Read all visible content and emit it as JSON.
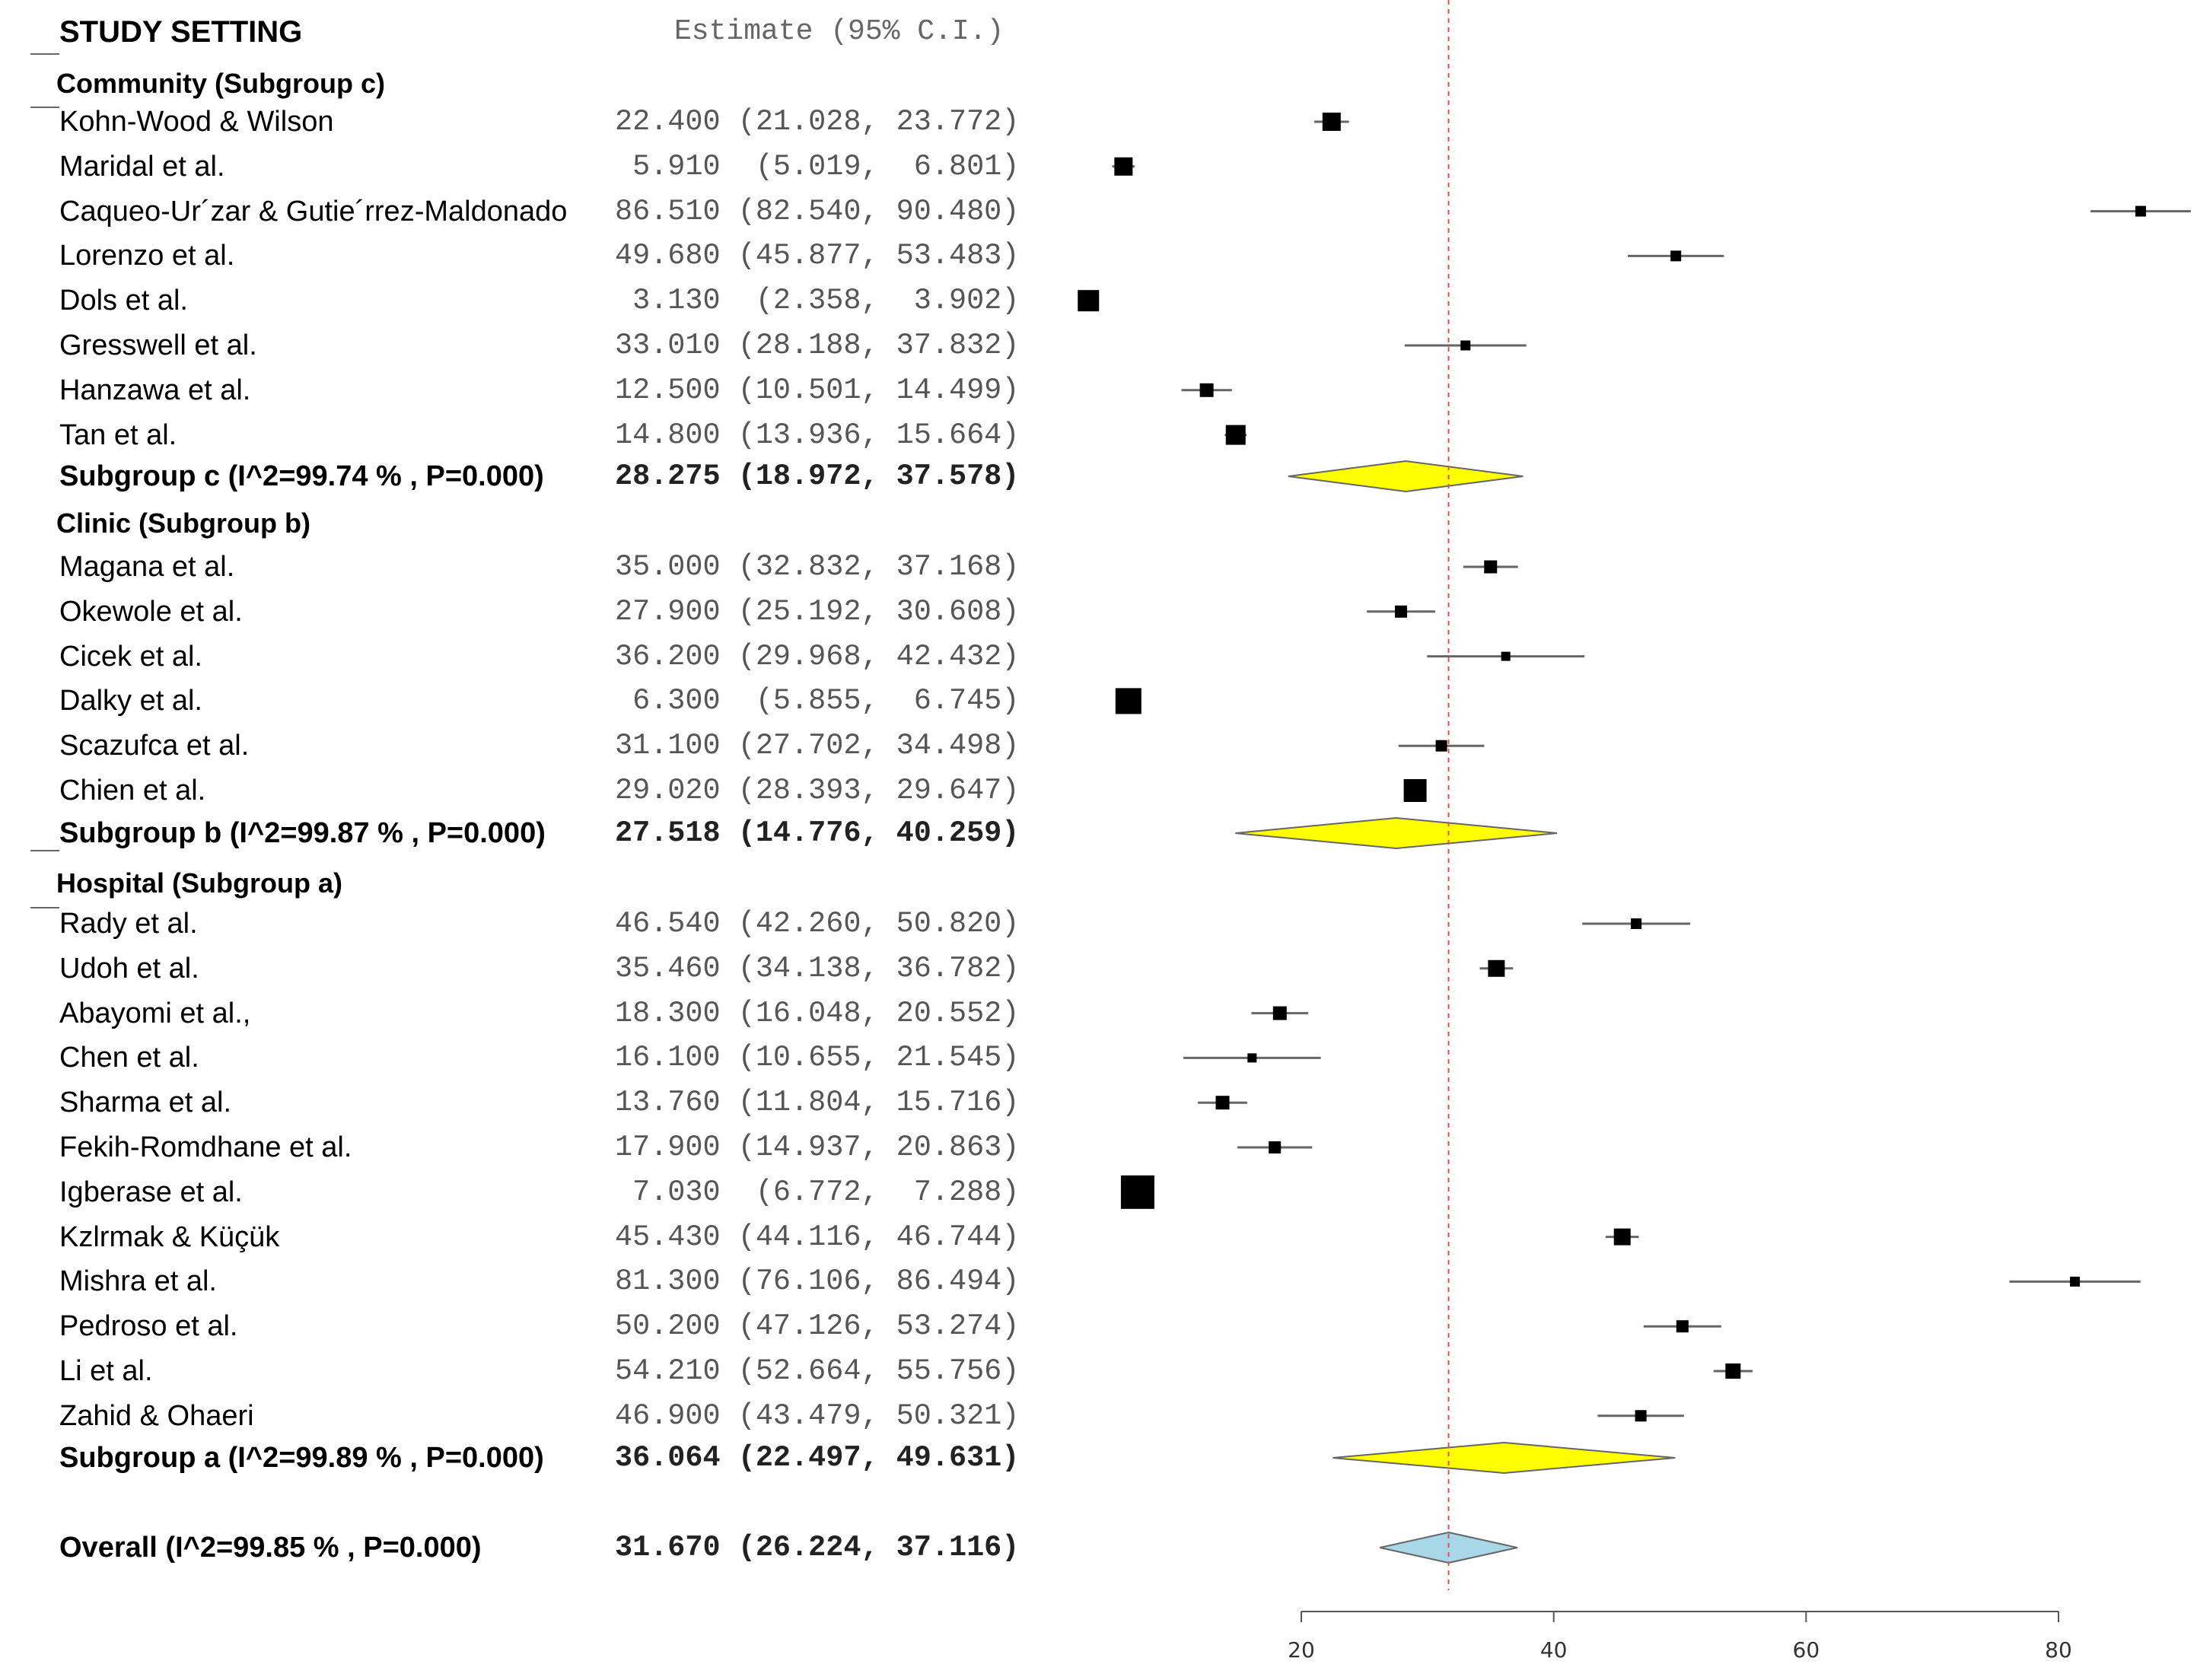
{
  "chart_data": {
    "type": "forest",
    "header": {
      "study_column": "STUDY SETTING",
      "estimate_column": "Estimate (95% C.I.)"
    },
    "x_ticks": [
      20,
      40,
      60,
      80
    ],
    "reference_line": 31.67,
    "groups": [
      {
        "title": "Community (Subgroup c)",
        "studies": [
          {
            "name": "Kohn-Wood & Wilson",
            "text": "22.400 (21.028, 23.772)",
            "est": 22.4,
            "lo": 21.028,
            "hi": 23.772,
            "w": 24
          },
          {
            "name": "Maridal et al.",
            "text": " 5.910  (5.019,  6.801)",
            "est": 5.91,
            "lo": 5.019,
            "hi": 6.801,
            "w": 24
          },
          {
            "name": "Caqueo-Ur´zar & Gutie´rrez-Maldonado",
            "text": "86.510 (82.540, 90.480)",
            "est": 86.51,
            "lo": 82.54,
            "hi": 90.48,
            "w": 14
          },
          {
            "name": "Lorenzo et al.",
            "text": "49.680 (45.877, 53.483)",
            "est": 49.68,
            "lo": 45.877,
            "hi": 53.483,
            "w": 14
          },
          {
            "name": "Dols et al.",
            "text": " 3.130  (2.358,  3.902)",
            "est": 3.13,
            "lo": 2.358,
            "hi": 3.902,
            "w": 28
          },
          {
            "name": "Gresswell et al.",
            "text": "33.010 (28.188, 37.832)",
            "est": 33.01,
            "lo": 28.188,
            "hi": 37.832,
            "w": 13
          },
          {
            "name": "Hanzawa et al.",
            "text": "12.500 (10.501, 14.499)",
            "est": 12.5,
            "lo": 10.501,
            "hi": 14.499,
            "w": 18
          },
          {
            "name": "Tan et al.",
            "text": "14.800 (13.936, 15.664)",
            "est": 14.8,
            "lo": 13.936,
            "hi": 15.664,
            "w": 26
          }
        ],
        "summary": {
          "label": "Subgroup c (I^2=99.74 % , P=0.000)",
          "text": "28.275 (18.972, 37.578)",
          "est": 28.275,
          "lo": 18.972,
          "hi": 37.578,
          "color": "#ffff00"
        }
      },
      {
        "title": "Clinic (Subgroup b)",
        "studies": [
          {
            "name": "Magana et al.",
            "text": "35.000 (32.832, 37.168)",
            "est": 35.0,
            "lo": 32.832,
            "hi": 37.168,
            "w": 17
          },
          {
            "name": "Okewole et al.",
            "text": "27.900 (25.192, 30.608)",
            "est": 27.9,
            "lo": 25.192,
            "hi": 30.608,
            "w": 16
          },
          {
            "name": "Cicek et al.",
            "text": "36.200 (29.968, 42.432)",
            "est": 36.2,
            "lo": 29.968,
            "hi": 42.432,
            "w": 12
          },
          {
            "name": "Dalky et al.",
            "text": " 6.300  (5.855,  6.745)",
            "est": 6.3,
            "lo": 5.855,
            "hi": 6.745,
            "w": 34
          },
          {
            "name": "Scazufca et al.",
            "text": "31.100 (27.702, 34.498)",
            "est": 31.1,
            "lo": 27.702,
            "hi": 34.498,
            "w": 15
          },
          {
            "name": "Chien et al.",
            "text": "29.020 (28.393, 29.647)",
            "est": 29.02,
            "lo": 28.393,
            "hi": 29.647,
            "w": 30
          }
        ],
        "summary": {
          "label": "Subgroup b (I^2=99.87 % , P=0.000)",
          "text": "27.518 (14.776, 40.259)",
          "est": 27.518,
          "lo": 14.776,
          "hi": 40.259,
          "color": "#ffff00"
        }
      },
      {
        "title": "Hospital (Subgroup a)",
        "studies": [
          {
            "name": "Rady et al.",
            "text": "46.540 (42.260, 50.820)",
            "est": 46.54,
            "lo": 42.26,
            "hi": 50.82,
            "w": 14
          },
          {
            "name": "Udoh et al.",
            "text": "35.460 (34.138, 36.782)",
            "est": 35.46,
            "lo": 34.138,
            "hi": 36.782,
            "w": 22
          },
          {
            "name": "Abayomi et al.,",
            "text": "18.300 (16.048, 20.552)",
            "est": 18.3,
            "lo": 16.048,
            "hi": 20.552,
            "w": 18
          },
          {
            "name": "Chen et al.",
            "text": "16.100 (10.655, 21.545)",
            "est": 16.1,
            "lo": 10.655,
            "hi": 21.545,
            "w": 12
          },
          {
            "name": "Sharma et al.",
            "text": "13.760 (11.804, 15.716)",
            "est": 13.76,
            "lo": 11.804,
            "hi": 15.716,
            "w": 18
          },
          {
            "name": "Fekih-Romdhane et al.",
            "text": "17.900 (14.937, 20.863)",
            "est": 17.9,
            "lo": 14.937,
            "hi": 20.863,
            "w": 16
          },
          {
            "name": "Igberase et al.",
            "text": " 7.030  (6.772,  7.288)",
            "est": 7.03,
            "lo": 6.772,
            "hi": 7.288,
            "w": 44
          },
          {
            "name": "Kzlrmak & Küçük",
            "text": "45.430 (44.116, 46.744)",
            "est": 45.43,
            "lo": 44.116,
            "hi": 46.744,
            "w": 22
          },
          {
            "name": "Mishra et al.",
            "text": "81.300 (76.106, 86.494)",
            "est": 81.3,
            "lo": 76.106,
            "hi": 86.494,
            "w": 13
          },
          {
            "name": "Pedroso et al.",
            "text": "50.200 (47.126, 53.274)",
            "est": 50.2,
            "lo": 47.126,
            "hi": 53.274,
            "w": 16
          },
          {
            "name": "Li et al.",
            "text": "54.210 (52.664, 55.756)",
            "est": 54.21,
            "lo": 52.664,
            "hi": 55.756,
            "w": 20
          },
          {
            "name": "Zahid  & Ohaeri",
            "text": "46.900 (43.479, 50.321)",
            "est": 46.9,
            "lo": 43.479,
            "hi": 50.321,
            "w": 15
          }
        ],
        "summary": {
          "label": "Subgroup a (I^2=99.89 % , P=0.000)",
          "text": "36.064 (22.497, 49.631)",
          "est": 36.064,
          "lo": 22.497,
          "hi": 49.631,
          "color": "#ffff00"
        }
      }
    ],
    "overall": {
      "label": "Overall (I^2=99.85 % , P=0.000)",
      "text": "31.670 (26.224, 37.116)",
      "est": 31.67,
      "lo": 26.224,
      "hi": 37.116,
      "color": "#a8d8e8"
    }
  }
}
